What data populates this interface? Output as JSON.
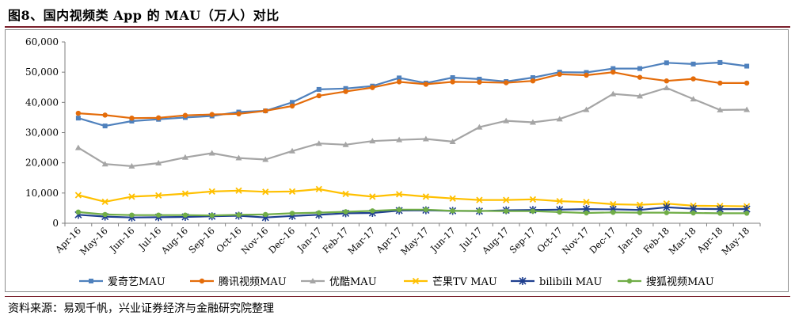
{
  "figure": {
    "title": "图8、国内视频类 App 的 MAU（万人）对比",
    "source": "资料来源：易观千帆，兴业证券经济与金融研究院整理"
  },
  "chart_data": {
    "type": "line",
    "title": "",
    "xlabel": "",
    "ylabel": "",
    "ylim": [
      0,
      60000
    ],
    "yticks": [
      "0",
      "10,000",
      "20,000",
      "30,000",
      "40,000",
      "50,000",
      "60,000"
    ],
    "grid": false,
    "legend_position": "bottom",
    "categories": [
      "Apr-16",
      "May-16",
      "Jun-16",
      "Jul-16",
      "Aug-16",
      "Sep-16",
      "Oct-16",
      "Nov-16",
      "Dec-16",
      "Jan-17",
      "Feb-17",
      "Mar-17",
      "Apr-17",
      "May-17",
      "Jun-17",
      "Jul-17",
      "Aug-17",
      "Sep-17",
      "Oct-17",
      "Nov-17",
      "Dec-17",
      "Jan-18",
      "Feb-18",
      "Mar-18",
      "Apr-18",
      "May-18"
    ],
    "series": [
      {
        "name": "爱奇艺MAU",
        "color": "#4f81bd",
        "marker": "square",
        "values": [
          34800,
          32200,
          33800,
          34400,
          35000,
          35500,
          36800,
          37200,
          40000,
          44300,
          44600,
          45400,
          48100,
          46400,
          48200,
          47700,
          46900,
          48200,
          50000,
          49900,
          51200,
          51200,
          53100,
          52700,
          53200,
          52000
        ]
      },
      {
        "name": "腾讯视频MAU",
        "color": "#e46c0a",
        "marker": "circle",
        "values": [
          36400,
          35800,
          34800,
          34900,
          35700,
          36000,
          36200,
          37200,
          38800,
          42200,
          43600,
          44900,
          46800,
          46000,
          46800,
          46700,
          46500,
          47100,
          49300,
          49000,
          50000,
          48300,
          47100,
          47800,
          46400,
          46400
        ]
      },
      {
        "name": "优酷MAU",
        "color": "#a5a5a5",
        "marker": "triangle",
        "values": [
          25000,
          19600,
          18900,
          19900,
          21800,
          23200,
          21600,
          21100,
          23900,
          26400,
          26000,
          27200,
          27600,
          27900,
          27000,
          31800,
          33900,
          33400,
          34500,
          37600,
          42800,
          42100,
          44800,
          41100,
          37500,
          37600
        ]
      },
      {
        "name": "芒果TV MAU",
        "color": "#ffc000",
        "marker": "x",
        "values": [
          9300,
          7100,
          8800,
          9200,
          9800,
          10500,
          10800,
          10400,
          10500,
          11300,
          9700,
          8800,
          9600,
          8800,
          8200,
          7700,
          7700,
          7900,
          7300,
          7000,
          6300,
          6100,
          6500,
          5800,
          5700,
          5600
        ]
      },
      {
        "name": "bilibili MAU",
        "color": "#1f3f8f",
        "marker": "star",
        "values": [
          2800,
          2200,
          1900,
          2000,
          2100,
          2300,
          2500,
          1900,
          2400,
          2800,
          3300,
          3400,
          4200,
          4300,
          4100,
          4000,
          4300,
          4400,
          4500,
          4700,
          4600,
          4400,
          5300,
          4800,
          4700,
          4700
        ]
      },
      {
        "name": "搜狐视频MAU",
        "color": "#70ad47",
        "marker": "circle",
        "values": [
          3700,
          2900,
          2700,
          2700,
          2700,
          2600,
          2800,
          2900,
          3300,
          3500,
          3800,
          4100,
          4500,
          4500,
          4100,
          4100,
          4000,
          4000,
          3700,
          3400,
          3600,
          3500,
          3500,
          3400,
          3300,
          3300
        ]
      }
    ]
  }
}
